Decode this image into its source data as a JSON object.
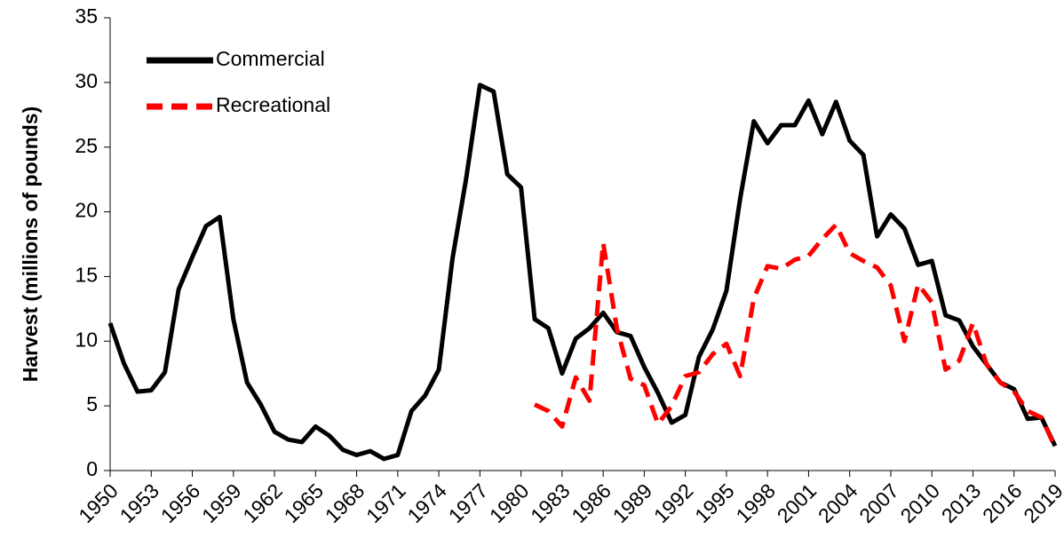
{
  "chart_data": {
    "type": "line",
    "ylabel": "Harvest (millions of pounds)",
    "x": [
      1950,
      1951,
      1952,
      1953,
      1954,
      1955,
      1956,
      1957,
      1958,
      1959,
      1960,
      1961,
      1962,
      1963,
      1964,
      1965,
      1966,
      1967,
      1968,
      1969,
      1970,
      1971,
      1972,
      1973,
      1974,
      1975,
      1976,
      1977,
      1978,
      1979,
      1980,
      1981,
      1982,
      1983,
      1984,
      1985,
      1986,
      1987,
      1988,
      1989,
      1990,
      1991,
      1992,
      1993,
      1994,
      1995,
      1996,
      1997,
      1998,
      1999,
      2000,
      2001,
      2002,
      2003,
      2004,
      2005,
      2006,
      2007,
      2008,
      2009,
      2010,
      2011,
      2012,
      2013,
      2014,
      2015,
      2016,
      2017,
      2018,
      2019
    ],
    "series": [
      {
        "name": "Commercial",
        "color": "#000000",
        "dashed": false,
        "values": [
          11.4,
          8.3,
          6.1,
          6.2,
          7.6,
          14.0,
          16.5,
          18.9,
          19.6,
          11.7,
          6.8,
          5.1,
          3.0,
          2.4,
          2.2,
          3.4,
          2.7,
          1.6,
          1.2,
          1.5,
          0.9,
          1.2,
          4.6,
          5.8,
          7.8,
          16.4,
          22.6,
          29.8,
          29.3,
          22.9,
          21.9,
          11.7,
          11.0,
          7.5,
          10.2,
          11.0,
          12.2,
          10.7,
          10.4,
          8.0,
          6.0,
          3.7,
          4.3,
          8.8,
          10.9,
          13.9,
          21.0,
          27.0,
          25.3,
          26.7,
          26.7,
          28.6,
          26.0,
          28.5,
          25.5,
          24.4,
          18.1,
          19.8,
          18.7,
          15.9,
          16.2,
          12.0,
          11.6,
          9.6,
          8.2,
          6.8,
          6.3,
          4.0,
          4.1,
          1.9
        ]
      },
      {
        "name": "Recreational",
        "color": "#ff0000",
        "dashed": true,
        "values": [
          null,
          null,
          null,
          null,
          null,
          null,
          null,
          null,
          null,
          null,
          null,
          null,
          null,
          null,
          null,
          null,
          null,
          null,
          null,
          null,
          null,
          null,
          null,
          null,
          null,
          null,
          null,
          null,
          null,
          null,
          null,
          5.1,
          4.6,
          3.4,
          7.2,
          5.4,
          17.6,
          11.0,
          7.1,
          6.6,
          3.6,
          5.0,
          7.3,
          7.6,
          9.0,
          9.8,
          7.3,
          13.3,
          15.8,
          15.6,
          16.3,
          16.6,
          17.9,
          19.0,
          16.8,
          16.2,
          15.7,
          14.3,
          10.0,
          14.4,
          13.0,
          7.8,
          8.5,
          11.4,
          8.2,
          6.8,
          6.1,
          4.6,
          4.1,
          1.8
        ]
      }
    ],
    "xlim": [
      1950,
      2019
    ],
    "xticks": [
      1950,
      1953,
      1956,
      1959,
      1962,
      1965,
      1968,
      1971,
      1974,
      1977,
      1980,
      1983,
      1986,
      1989,
      1992,
      1995,
      1998,
      2001,
      2004,
      2007,
      2010,
      2013,
      2016,
      2019
    ],
    "ylim": [
      0,
      35
    ],
    "yticks": [
      0,
      5,
      10,
      15,
      20,
      25,
      30,
      35
    ],
    "grid": false,
    "legend": "upper left"
  }
}
